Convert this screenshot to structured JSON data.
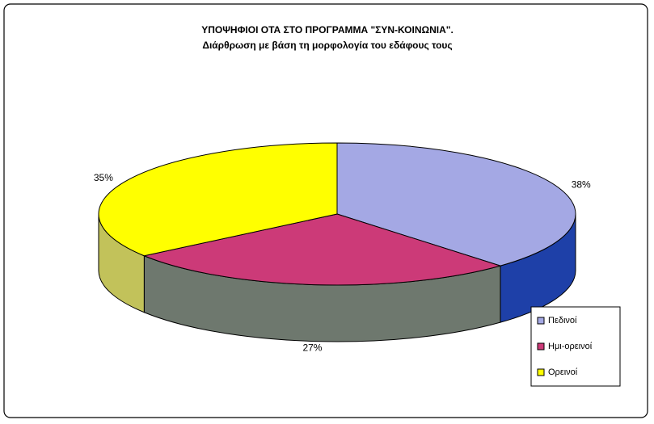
{
  "chart_data": {
    "type": "pie3d",
    "title": "ΥΠΟΨΗΦΙΟΙ ΟΤΑ ΣΤΟ ΠΡΟΓΡΑΜΜΑ \"ΣΥΝ-ΚΟΙΝΩΝΙΑ\".",
    "subtitle": "Διάρθρωση με βάση τη μορφολογία του εδάφους τους",
    "categories": [
      "Πεδινοί",
      "Ημι-ορεινοί",
      "Ορεινοί"
    ],
    "values": [
      38,
      27,
      35
    ],
    "value_labels": [
      "38%",
      "27%",
      "35%"
    ],
    "colors": [
      "#a4a8e4",
      "#cc3a78",
      "#ffff00"
    ],
    "side_colors": [
      "#1e40a8",
      "#6e786e",
      "#c2c25a"
    ],
    "legend": "bottom-right"
  }
}
